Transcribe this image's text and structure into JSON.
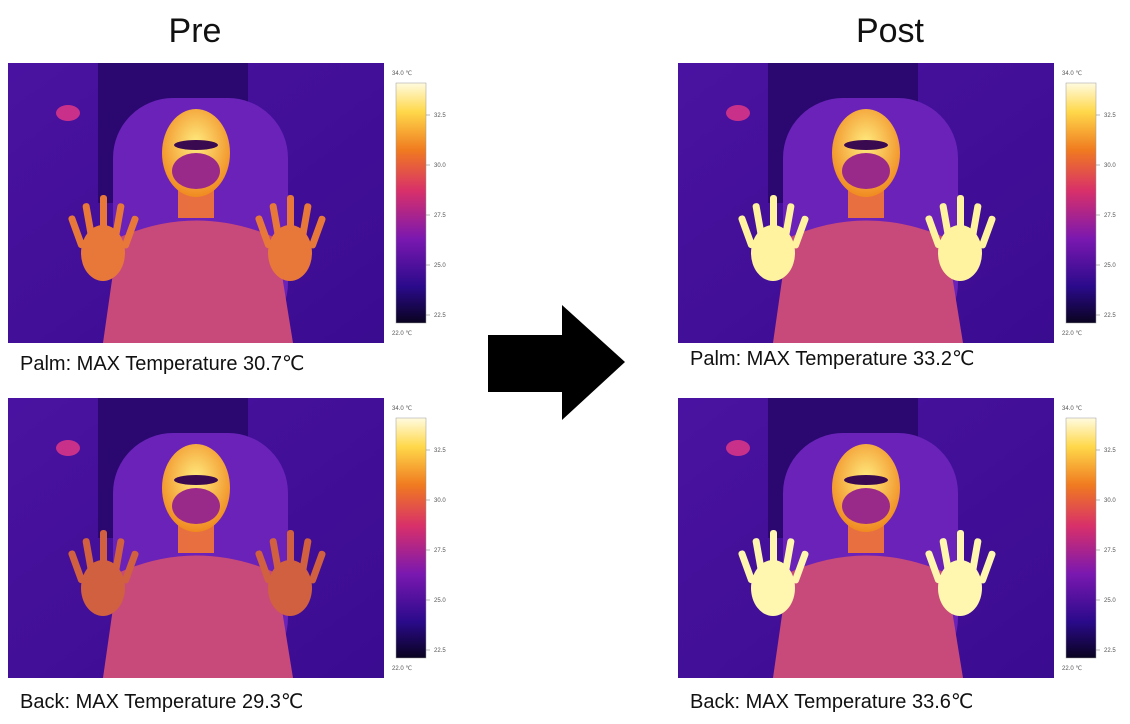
{
  "columns": [
    {
      "title": "Pre",
      "panels": [
        {
          "caption": "Palm: MAX Temperature 30.7℃"
        },
        {
          "caption": "Back: MAX Temperature 29.3℃"
        }
      ]
    },
    {
      "title": "Post",
      "panels": [
        {
          "caption": "Palm: MAX Temperature 33.2℃"
        },
        {
          "caption": "Back: MAX Temperature 33.6℃"
        }
      ]
    }
  ],
  "colorbar": {
    "max_label": "34.0 ℃",
    "ticks": [
      "32.5",
      "30.0",
      "27.5",
      "25.0",
      "22.5"
    ],
    "min_label": "22.0 ℃"
  }
}
